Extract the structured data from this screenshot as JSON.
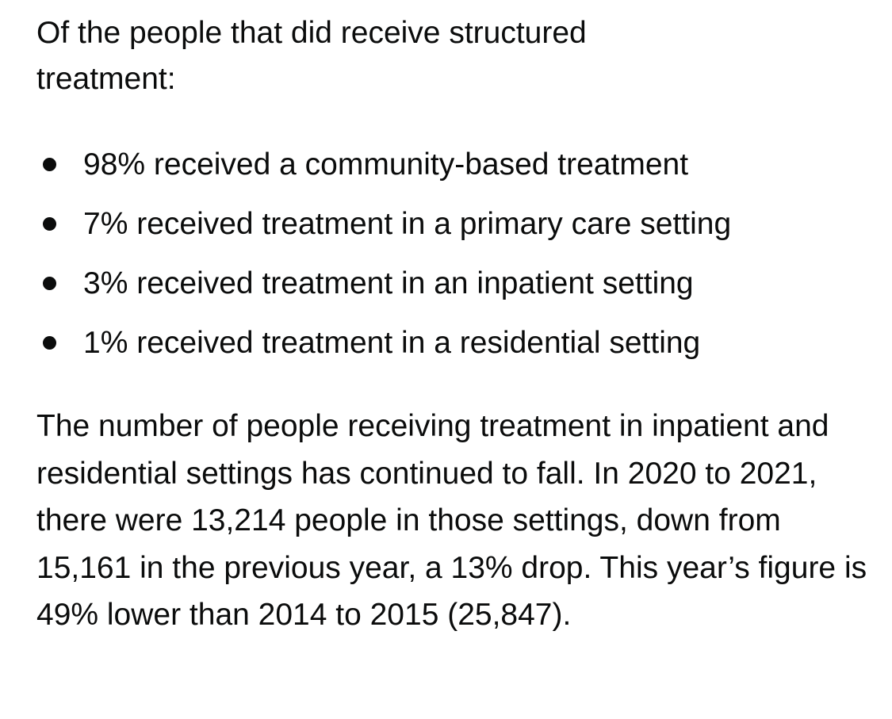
{
  "intro": "Of the people that did receive structured treatment:",
  "list": [
    "98% received a community-based treatment",
    "7% received treatment in a primary care setting",
    "3% received treatment in an inpatient setting",
    "1% received treatment in a residential setting"
  ],
  "paragraph": "The number of people receiving treatment in inpatient and residential settings has continued to fall. In 2020 to 2021, there were 13,214 people in those settings, down from 15,161 in the previous year, a 13% drop. This year’s figure is 49% lower than 2014 to 2015 (25,847)."
}
